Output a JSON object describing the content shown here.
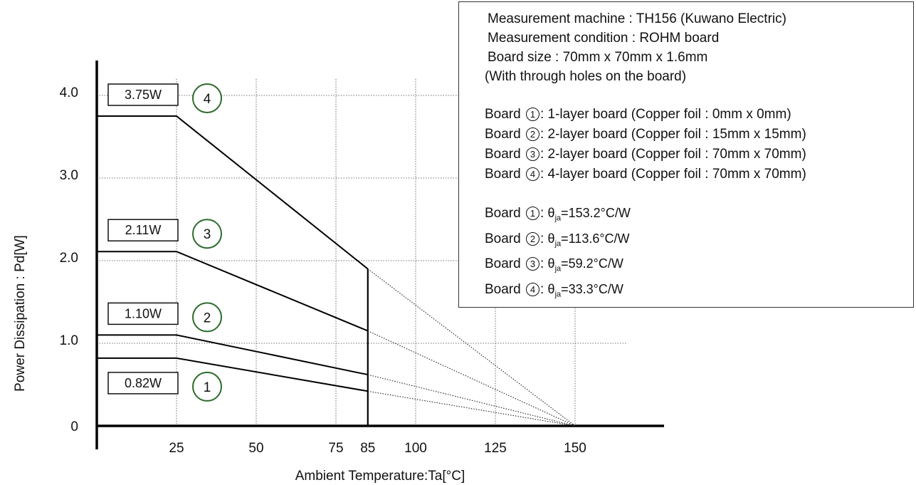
{
  "chart_data": {
    "type": "line",
    "xlabel": "Ambient Temperature:Ta[°C]",
    "ylabel": "Power Dissipation : Pd[W]",
    "xlim": [
      0,
      175
    ],
    "ylim": [
      0,
      4.2
    ],
    "x_ticks": [
      "25",
      "50",
      "75",
      "85",
      "100",
      "125",
      "150"
    ],
    "y_ticks": [
      "0",
      "1.0",
      "2.0",
      "3.0",
      "4.0"
    ],
    "grid": true,
    "derating_end_x": 85,
    "extrapolation_end_x": 150,
    "series": [
      {
        "name": "1",
        "label": "0.82W",
        "x": [
          0,
          25,
          85
        ],
        "y": [
          0.82,
          0.82,
          0.42
        ],
        "extrapolated": {
          "x": [
            85,
            150
          ],
          "y": [
            0.42,
            0
          ]
        }
      },
      {
        "name": "2",
        "label": "1.10W",
        "x": [
          0,
          25,
          85
        ],
        "y": [
          1.1,
          1.1,
          0.62
        ],
        "extrapolated": {
          "x": [
            85,
            150
          ],
          "y": [
            0.62,
            0
          ]
        }
      },
      {
        "name": "3",
        "label": "2.11W",
        "x": [
          0,
          25,
          85
        ],
        "y": [
          2.11,
          2.11,
          1.15
        ],
        "extrapolated": {
          "x": [
            85,
            150
          ],
          "y": [
            1.15,
            0
          ]
        }
      },
      {
        "name": "4",
        "label": "3.75W",
        "x": [
          0,
          25,
          85
        ],
        "y": [
          3.75,
          3.75,
          1.9
        ],
        "extrapolated": {
          "x": [
            85,
            150
          ],
          "y": [
            1.9,
            0
          ]
        }
      }
    ]
  },
  "info": {
    "machine": "Measurement machine : TH156 (Kuwano Electric)",
    "condition": "Measurement condition : ROHM board",
    "size": "Board size : 70mm x 70mm x 1.6mm",
    "holes": "(With through holes on the board)",
    "board_word": "Board",
    "boards": [
      {
        "num": "1",
        "desc": ": 1-layer board (Copper foil : 0mm x 0mm)",
        "theta_value": "=153.2°C/W"
      },
      {
        "num": "2",
        "desc": ": 2-layer board (Copper foil : 15mm x 15mm)",
        "theta_value": "=113.6°C/W"
      },
      {
        "num": "3",
        "desc": ": 2-layer board (Copper foil : 70mm x 70mm)",
        "theta_value": "=59.2°C/W"
      },
      {
        "num": "4",
        "desc": ": 4-layer board (Copper foil : 70mm x 70mm)",
        "theta_value": "=33.3°C/W"
      }
    ],
    "theta_symbol": "θ",
    "theta_sub": "ja"
  }
}
